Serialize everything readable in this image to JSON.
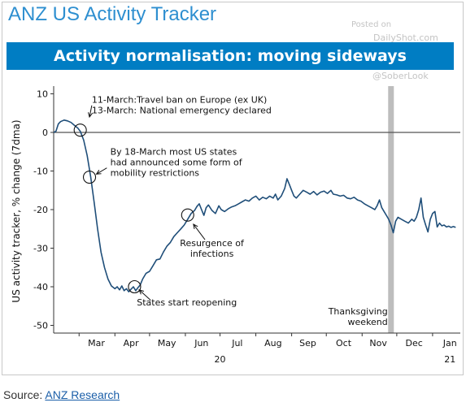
{
  "header": {
    "title": "ANZ US Activity Tracker",
    "subtitle": "Activity normalisation: moving sideways"
  },
  "watermarks": {
    "posted_on": "Posted on",
    "site": "DailyShot.com",
    "handle": "@SoberLook"
  },
  "source": {
    "prefix": "Source:",
    "link_text": "ANZ Research"
  },
  "chart_data": {
    "type": "line",
    "ylabel": "US activity tracker, % change (7dma)",
    "ylim": [
      -52,
      12
    ],
    "yticks": [
      10,
      0,
      -10,
      -20,
      -30,
      -40,
      -50
    ],
    "xlim": [
      "2020-02-08",
      "2021-01-25"
    ],
    "x_tick_labels": [
      {
        "label": "Mar",
        "date": "2020-03-16"
      },
      {
        "label": "Apr",
        "date": "2020-04-15"
      },
      {
        "label": "May",
        "date": "2020-05-16"
      },
      {
        "label": "Jun",
        "date": "2020-06-15"
      },
      {
        "label": "Jul",
        "date": "2020-07-16"
      },
      {
        "label": "Aug",
        "date": "2020-08-16"
      },
      {
        "label": "Sep",
        "date": "2020-09-15"
      },
      {
        "label": "Oct",
        "date": "2020-10-16"
      },
      {
        "label": "Nov",
        "date": "2020-11-15"
      },
      {
        "label": "Dec",
        "date": "2020-12-16"
      },
      {
        "label": "Jan",
        "date": "2021-01-16"
      }
    ],
    "x_year_labels": [
      {
        "label": "20",
        "date": "2020-07-01"
      },
      {
        "label": "21",
        "date": "2021-01-16"
      }
    ],
    "zero_line": true,
    "vband": {
      "date": "2020-11-26",
      "label": "Thanksgiving\nweekend"
    },
    "series": [
      {
        "color": "#1F4E79",
        "points": [
          [
            "2020-02-08",
            0.0
          ],
          [
            "2020-02-10",
            0.3
          ],
          [
            "2020-02-12",
            2.2
          ],
          [
            "2020-02-14",
            2.8
          ],
          [
            "2020-02-17",
            3.2
          ],
          [
            "2020-02-20",
            3.0
          ],
          [
            "2020-02-23",
            2.6
          ],
          [
            "2020-02-26",
            1.8
          ],
          [
            "2020-02-29",
            1.1
          ],
          [
            "2020-03-02",
            0.3
          ],
          [
            "2020-03-05",
            -2.0
          ],
          [
            "2020-03-08",
            -6.0
          ],
          [
            "2020-03-11",
            -11.5
          ],
          [
            "2020-03-14",
            -18.0
          ],
          [
            "2020-03-17",
            -25.0
          ],
          [
            "2020-03-20",
            -31.0
          ],
          [
            "2020-03-23",
            -35.0
          ],
          [
            "2020-03-26",
            -38.0
          ],
          [
            "2020-03-29",
            -39.8
          ],
          [
            "2020-04-01",
            -40.5
          ],
          [
            "2020-04-03",
            -40.0
          ],
          [
            "2020-04-05",
            -40.8
          ],
          [
            "2020-04-07",
            -39.8
          ],
          [
            "2020-04-09",
            -41.0
          ],
          [
            "2020-04-11",
            -40.5
          ],
          [
            "2020-04-13",
            -41.3
          ],
          [
            "2020-04-15",
            -40.6
          ],
          [
            "2020-04-17",
            -40.0
          ],
          [
            "2020-04-19",
            -41.0
          ],
          [
            "2020-04-21",
            -40.2
          ],
          [
            "2020-04-23",
            -39.5
          ],
          [
            "2020-04-25",
            -38.0
          ],
          [
            "2020-04-28",
            -36.5
          ],
          [
            "2020-05-01",
            -36.0
          ],
          [
            "2020-05-04",
            -34.5
          ],
          [
            "2020-05-07",
            -33.0
          ],
          [
            "2020-05-10",
            -32.8
          ],
          [
            "2020-05-13",
            -31.0
          ],
          [
            "2020-05-16",
            -29.5
          ],
          [
            "2020-05-19",
            -28.5
          ],
          [
            "2020-05-22",
            -27.0
          ],
          [
            "2020-05-25",
            -26.0
          ],
          [
            "2020-05-28",
            -25.0
          ],
          [
            "2020-05-31",
            -24.0
          ],
          [
            "2020-06-03",
            -22.5
          ],
          [
            "2020-06-06",
            -21.0
          ],
          [
            "2020-06-09",
            -20.2
          ],
          [
            "2020-06-11",
            -19.2
          ],
          [
            "2020-06-13",
            -18.5
          ],
          [
            "2020-06-15",
            -20.0
          ],
          [
            "2020-06-17",
            -21.5
          ],
          [
            "2020-06-19",
            -19.5
          ],
          [
            "2020-06-21",
            -18.8
          ],
          [
            "2020-06-24",
            -20.2
          ],
          [
            "2020-06-27",
            -21.0
          ],
          [
            "2020-06-30",
            -19.0
          ],
          [
            "2020-07-02",
            -20.0
          ],
          [
            "2020-07-05",
            -20.5
          ],
          [
            "2020-07-08",
            -19.8
          ],
          [
            "2020-07-11",
            -19.3
          ],
          [
            "2020-07-14",
            -19.0
          ],
          [
            "2020-07-17",
            -18.5
          ],
          [
            "2020-07-20",
            -18.0
          ],
          [
            "2020-07-23",
            -17.5
          ],
          [
            "2020-07-26",
            -17.8
          ],
          [
            "2020-07-29",
            -17.0
          ],
          [
            "2020-08-01",
            -16.5
          ],
          [
            "2020-08-04",
            -17.5
          ],
          [
            "2020-08-07",
            -16.8
          ],
          [
            "2020-08-10",
            -17.2
          ],
          [
            "2020-08-13",
            -16.5
          ],
          [
            "2020-08-16",
            -17.0
          ],
          [
            "2020-08-18",
            -16.0
          ],
          [
            "2020-08-20",
            -17.5
          ],
          [
            "2020-08-23",
            -16.5
          ],
          [
            "2020-08-26",
            -14.5
          ],
          [
            "2020-08-28",
            -12.0
          ],
          [
            "2020-08-30",
            -13.5
          ],
          [
            "2020-09-01",
            -15.0
          ],
          [
            "2020-09-03",
            -16.5
          ],
          [
            "2020-09-05",
            -17.0
          ],
          [
            "2020-09-08",
            -16.0
          ],
          [
            "2020-09-11",
            -15.0
          ],
          [
            "2020-09-14",
            -15.5
          ],
          [
            "2020-09-17",
            -16.0
          ],
          [
            "2020-09-20",
            -15.3
          ],
          [
            "2020-09-23",
            -16.2
          ],
          [
            "2020-09-26",
            -15.5
          ],
          [
            "2020-09-29",
            -15.2
          ],
          [
            "2020-10-02",
            -15.8
          ],
          [
            "2020-10-05",
            -15.0
          ],
          [
            "2020-10-07",
            -16.0
          ],
          [
            "2020-10-10",
            -16.2
          ],
          [
            "2020-10-13",
            -16.5
          ],
          [
            "2020-10-16",
            -16.3
          ],
          [
            "2020-10-19",
            -17.0
          ],
          [
            "2020-10-22",
            -17.2
          ],
          [
            "2020-10-25",
            -16.8
          ],
          [
            "2020-10-28",
            -17.5
          ],
          [
            "2020-10-31",
            -17.8
          ],
          [
            "2020-11-03",
            -18.5
          ],
          [
            "2020-11-06",
            -19.0
          ],
          [
            "2020-11-09",
            -19.5
          ],
          [
            "2020-11-12",
            -20.0
          ],
          [
            "2020-11-14",
            -19.0
          ],
          [
            "2020-11-16",
            -17.5
          ],
          [
            "2020-11-18",
            -19.5
          ],
          [
            "2020-11-20",
            -20.5
          ],
          [
            "2020-11-22",
            -21.5
          ],
          [
            "2020-11-24",
            -22.5
          ],
          [
            "2020-11-26",
            -24.0
          ],
          [
            "2020-11-28",
            -26.0
          ],
          [
            "2020-11-30",
            -23.0
          ],
          [
            "2020-12-02",
            -22.0
          ],
          [
            "2020-12-05",
            -22.5
          ],
          [
            "2020-12-08",
            -23.0
          ],
          [
            "2020-12-11",
            -23.5
          ],
          [
            "2020-12-14",
            -22.5
          ],
          [
            "2020-12-16",
            -23.0
          ],
          [
            "2020-12-18",
            -22.0
          ],
          [
            "2020-12-20",
            -20.0
          ],
          [
            "2020-12-22",
            -17.0
          ],
          [
            "2020-12-24",
            -22.0
          ],
          [
            "2020-12-26",
            -24.0
          ],
          [
            "2020-12-28",
            -25.8
          ],
          [
            "2020-12-30",
            -22.5
          ],
          [
            "2021-01-01",
            -21.0
          ],
          [
            "2021-01-03",
            -20.5
          ],
          [
            "2021-01-05",
            -24.5
          ],
          [
            "2021-01-07",
            -23.5
          ],
          [
            "2021-01-09",
            -24.2
          ],
          [
            "2021-01-11",
            -24.0
          ],
          [
            "2021-01-13",
            -24.5
          ],
          [
            "2021-01-15",
            -24.3
          ],
          [
            "2021-01-17",
            -24.6
          ],
          [
            "2021-01-19",
            -24.4
          ],
          [
            "2021-01-21",
            -24.6
          ]
        ]
      }
    ],
    "annotations": [
      {
        "text": "11-March:Travel ban on Europe (ex UK)\n13-March: National emergency declared",
        "point": [
          "2020-03-02",
          0.6
        ],
        "label_at": [
          "2020-03-12",
          7.7
        ],
        "arrow_end": [
          "2020-03-10",
          4.0
        ],
        "arrow_start": [
          "2020-03-12",
          7.0
        ]
      },
      {
        "text": "By 18-March most US states\nhad announced some form of\nmobility restrictions",
        "point": [
          "2020-03-10",
          -11.6
        ],
        "label_at": [
          "2020-03-28",
          -5.8
        ],
        "arrow_end": [
          "2020-03-16",
          -10.8
        ],
        "arrow_start": [
          "2020-03-25",
          -9.2
        ]
      },
      {
        "text": "Resurgence of\ninfections",
        "point": [
          "2020-06-03",
          -21.4
        ],
        "label_at": [
          "2020-06-24",
          -29.5
        ],
        "arrow_end": [
          "2020-06-08",
          -23.8
        ],
        "arrow_start": [
          "2020-06-18",
          -27.8
        ]
      },
      {
        "text": "States start reopening",
        "point": [
          "2020-04-18",
          -40.0
        ],
        "label_at": [
          "2020-04-20",
          -44.8
        ],
        "arrow_end": [
          "2020-04-22",
          -40.8
        ],
        "arrow_start": [
          "2020-05-02",
          -43.5
        ]
      }
    ]
  }
}
